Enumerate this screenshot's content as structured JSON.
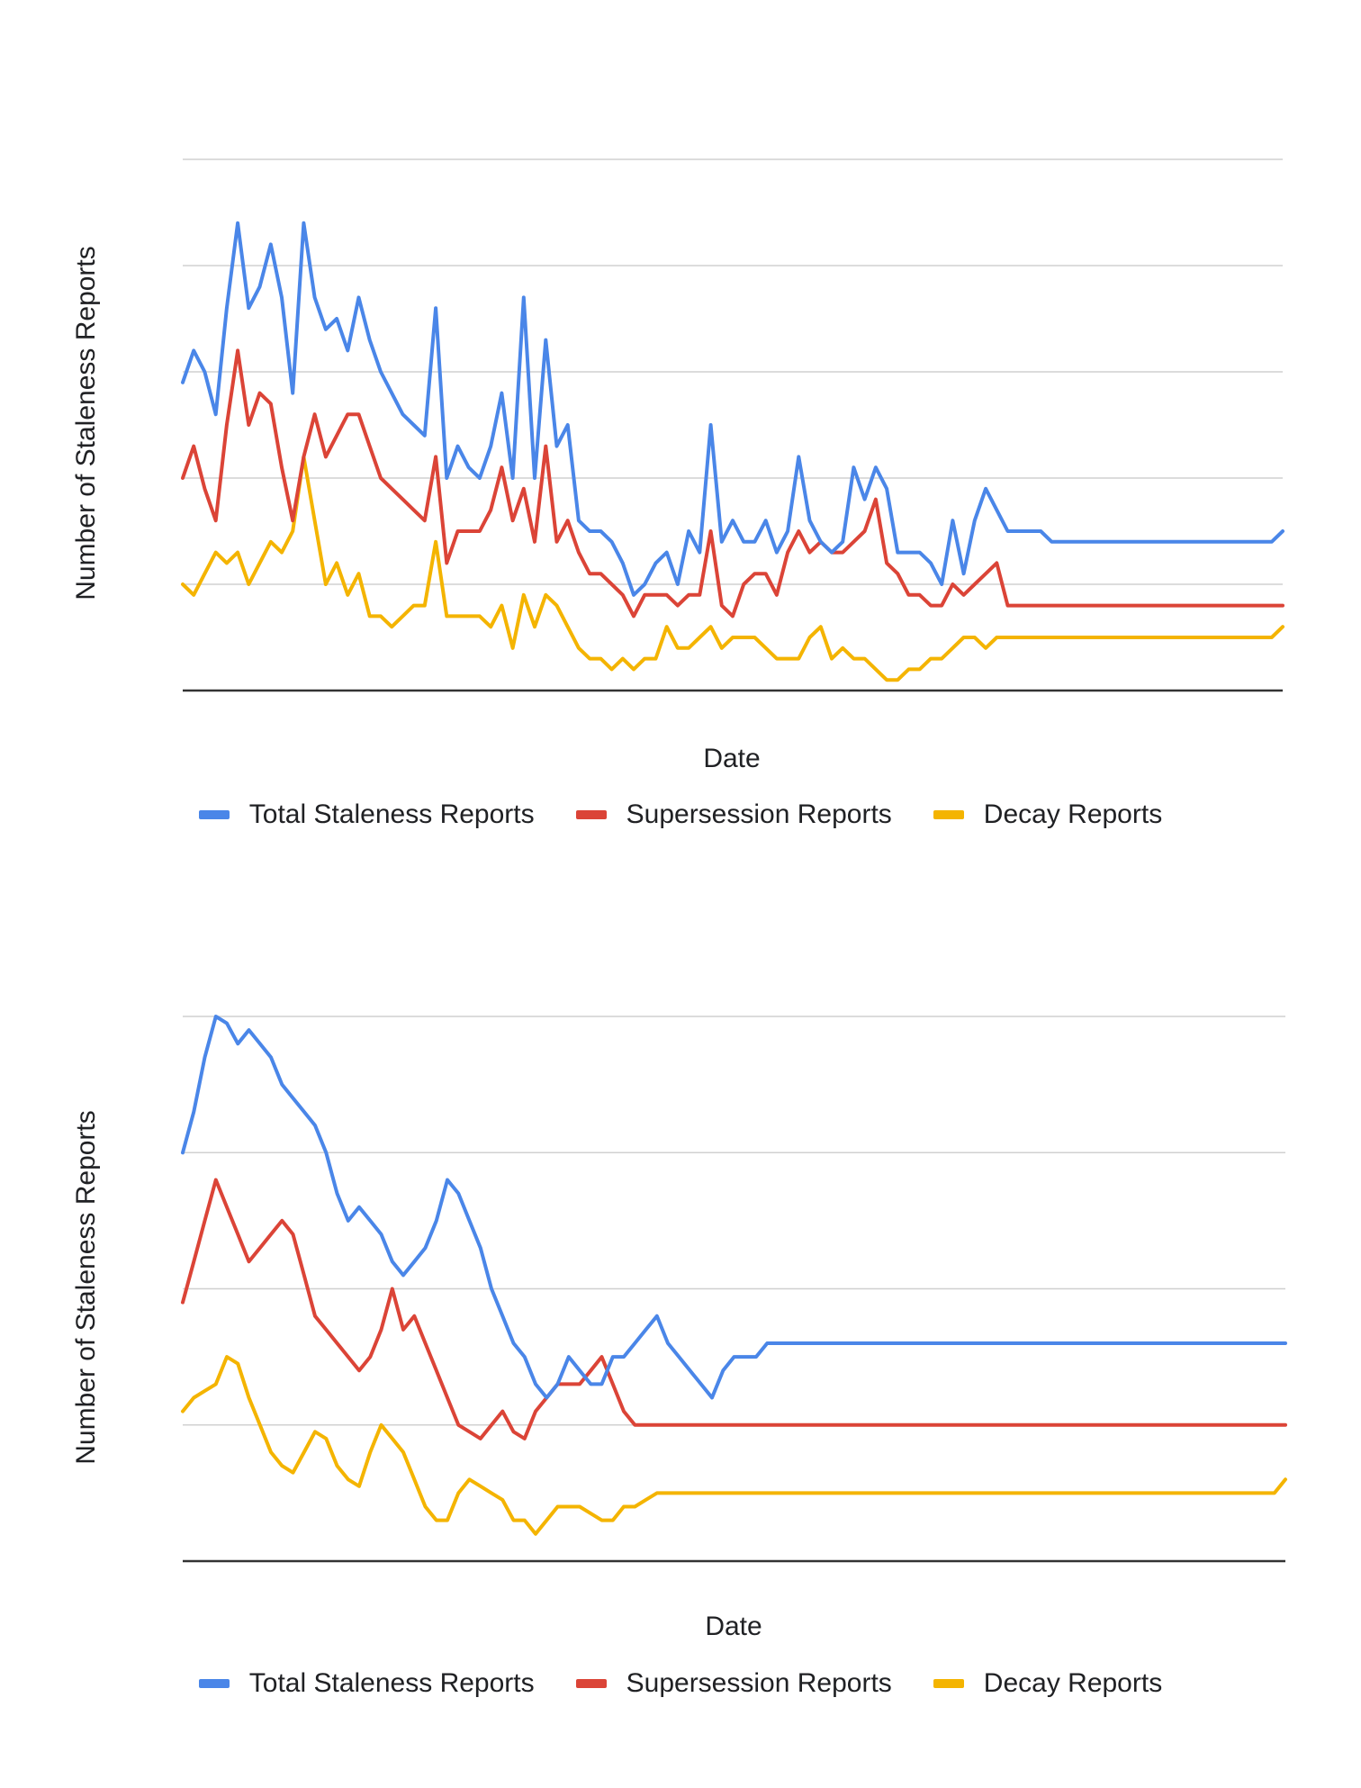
{
  "colors": {
    "total": "#4a86e8",
    "supersession": "#db4437",
    "decay": "#f4b400",
    "grid": "#d0d0d0",
    "axis": "#333333"
  },
  "charts": [
    {
      "ylabel": "Number of Staleness Reports",
      "xlabel": "Date",
      "legend": [
        "Total Staleness Reports",
        "Supersession Reports",
        "Decay Reports"
      ]
    },
    {
      "ylabel": "Number of Staleness Reports",
      "xlabel": "Date",
      "legend": [
        "Total Staleness Reports",
        "Supersession Reports",
        "Decay Reports"
      ]
    }
  ],
  "chart_data": [
    {
      "type": "line",
      "title": "",
      "xlabel": "Date",
      "ylabel": "Number of Staleness Reports",
      "x_tick_labels": [],
      "y_tick_labels": [],
      "ylim": [
        0,
        5
      ],
      "grid": true,
      "legend_position": "bottom",
      "x": [
        0,
        1,
        2,
        3,
        4,
        5,
        6,
        7,
        8,
        9,
        10,
        11,
        12,
        13,
        14,
        15,
        16,
        17,
        18,
        19,
        20,
        21,
        22,
        23,
        24,
        25,
        26,
        27,
        28,
        29,
        30,
        31,
        32,
        33,
        34,
        35,
        36,
        37,
        38,
        39,
        40,
        41,
        42,
        43,
        44,
        45,
        46,
        47,
        48,
        49,
        50,
        51,
        52,
        53,
        54,
        55,
        56,
        57,
        58,
        59,
        60,
        61,
        62,
        63,
        64,
        65,
        66,
        67,
        68,
        69,
        70,
        71,
        72,
        73,
        74,
        75,
        76,
        77,
        78,
        79,
        80,
        81,
        82,
        83,
        84,
        85,
        86,
        87,
        88,
        89,
        90,
        91,
        92,
        93,
        94,
        95,
        96,
        97,
        98,
        99,
        100
      ],
      "series": [
        {
          "name": "Total Staleness Reports",
          "values": [
            2.9,
            3.2,
            3.0,
            2.6,
            3.6,
            4.4,
            3.6,
            3.8,
            4.2,
            3.7,
            2.8,
            4.4,
            3.7,
            3.4,
            3.5,
            3.2,
            3.7,
            3.3,
            3.0,
            2.8,
            2.6,
            2.5,
            2.4,
            3.6,
            2.0,
            2.3,
            2.1,
            2.0,
            2.3,
            2.8,
            2.0,
            3.7,
            2.0,
            3.3,
            2.3,
            2.5,
            1.6,
            1.5,
            1.5,
            1.4,
            1.2,
            0.9,
            1.0,
            1.2,
            1.3,
            1.0,
            1.5,
            1.3,
            2.5,
            1.4,
            1.6,
            1.4,
            1.4,
            1.6,
            1.3,
            1.5,
            2.2,
            1.6,
            1.4,
            1.3,
            1.4,
            2.1,
            1.8,
            2.1,
            1.9,
            1.3,
            1.3,
            1.3,
            1.2,
            1.0,
            1.6,
            1.1,
            1.6,
            1.9,
            1.7,
            1.5,
            1.5,
            1.5,
            1.5,
            1.4,
            1.4,
            1.4,
            1.4,
            1.4,
            1.4,
            1.4,
            1.4,
            1.4,
            1.4,
            1.4,
            1.4,
            1.4,
            1.4,
            1.4,
            1.4,
            1.4,
            1.4,
            1.4,
            1.4,
            1.4,
            1.5
          ]
        },
        {
          "name": "Supersession Reports",
          "values": [
            2.0,
            2.3,
            1.9,
            1.6,
            2.5,
            3.2,
            2.5,
            2.8,
            2.7,
            2.1,
            1.6,
            2.2,
            2.6,
            2.2,
            2.4,
            2.6,
            2.6,
            2.3,
            2.0,
            1.9,
            1.8,
            1.7,
            1.6,
            2.2,
            1.2,
            1.5,
            1.5,
            1.5,
            1.7,
            2.1,
            1.6,
            1.9,
            1.4,
            2.3,
            1.4,
            1.6,
            1.3,
            1.1,
            1.1,
            1.0,
            0.9,
            0.7,
            0.9,
            0.9,
            0.9,
            0.8,
            0.9,
            0.9,
            1.5,
            0.8,
            0.7,
            1.0,
            1.1,
            1.1,
            0.9,
            1.3,
            1.5,
            1.3,
            1.4,
            1.3,
            1.3,
            1.4,
            1.5,
            1.8,
            1.2,
            1.1,
            0.9,
            0.9,
            0.8,
            0.8,
            1.0,
            0.9,
            1.0,
            1.1,
            1.2,
            0.8,
            0.8,
            0.8,
            0.8,
            0.8,
            0.8,
            0.8,
            0.8,
            0.8,
            0.8,
            0.8,
            0.8,
            0.8,
            0.8,
            0.8,
            0.8,
            0.8,
            0.8,
            0.8,
            0.8,
            0.8,
            0.8,
            0.8,
            0.8,
            0.8,
            0.8
          ]
        },
        {
          "name": "Decay Reports",
          "values": [
            1.0,
            0.9,
            1.1,
            1.3,
            1.2,
            1.3,
            1.0,
            1.2,
            1.4,
            1.3,
            1.5,
            2.2,
            1.6,
            1.0,
            1.2,
            0.9,
            1.1,
            0.7,
            0.7,
            0.6,
            0.7,
            0.8,
            0.8,
            1.4,
            0.7,
            0.7,
            0.7,
            0.7,
            0.6,
            0.8,
            0.4,
            0.9,
            0.6,
            0.9,
            0.8,
            0.6,
            0.4,
            0.3,
            0.3,
            0.2,
            0.3,
            0.2,
            0.3,
            0.3,
            0.6,
            0.4,
            0.4,
            0.5,
            0.6,
            0.4,
            0.5,
            0.5,
            0.5,
            0.4,
            0.3,
            0.3,
            0.3,
            0.5,
            0.6,
            0.3,
            0.4,
            0.3,
            0.3,
            0.2,
            0.1,
            0.1,
            0.2,
            0.2,
            0.3,
            0.3,
            0.4,
            0.5,
            0.5,
            0.4,
            0.5,
            0.5,
            0.5,
            0.5,
            0.5,
            0.5,
            0.5,
            0.5,
            0.5,
            0.5,
            0.5,
            0.5,
            0.5,
            0.5,
            0.5,
            0.5,
            0.5,
            0.5,
            0.5,
            0.5,
            0.5,
            0.5,
            0.5,
            0.5,
            0.5,
            0.5,
            0.6
          ]
        }
      ]
    },
    {
      "type": "line",
      "title": "",
      "xlabel": "Date",
      "ylabel": "Number of Staleness Reports",
      "x_tick_labels": [],
      "y_tick_labels": [],
      "ylim": [
        0,
        4
      ],
      "grid": true,
      "legend_position": "bottom",
      "x": [
        0,
        1,
        2,
        3,
        4,
        5,
        6,
        7,
        8,
        9,
        10,
        11,
        12,
        13,
        14,
        15,
        16,
        17,
        18,
        19,
        20,
        21,
        22,
        23,
        24,
        25,
        26,
        27,
        28,
        29,
        30,
        31,
        32,
        33,
        34,
        35,
        36,
        37,
        38,
        39,
        40,
        41,
        42,
        43,
        44,
        45,
        46,
        47,
        48,
        49,
        50,
        51,
        52,
        53,
        54,
        55,
        56,
        57,
        58,
        59,
        60,
        61,
        62,
        63,
        64,
        65,
        66,
        67,
        68,
        69,
        70,
        71,
        72,
        73,
        74,
        75,
        76,
        77,
        78,
        79,
        80,
        81,
        82,
        83,
        84,
        85,
        86,
        87,
        88,
        89,
        90,
        91,
        92,
        93,
        94,
        95,
        96,
        97,
        98,
        99,
        100
      ],
      "series": [
        {
          "name": "Total Staleness Reports",
          "values": [
            3.0,
            3.3,
            3.7,
            4.0,
            3.95,
            3.8,
            3.9,
            3.8,
            3.7,
            3.5,
            3.4,
            3.3,
            3.2,
            3.0,
            2.7,
            2.5,
            2.6,
            2.5,
            2.4,
            2.2,
            2.1,
            2.2,
            2.3,
            2.5,
            2.8,
            2.7,
            2.5,
            2.3,
            2.0,
            1.8,
            1.6,
            1.5,
            1.3,
            1.2,
            1.3,
            1.5,
            1.4,
            1.3,
            1.3,
            1.5,
            1.5,
            1.6,
            1.7,
            1.8,
            1.6,
            1.5,
            1.4,
            1.3,
            1.2,
            1.4,
            1.5,
            1.5,
            1.5,
            1.6,
            1.6,
            1.6,
            1.6,
            1.6,
            1.6,
            1.6,
            1.6,
            1.6,
            1.6,
            1.6,
            1.6,
            1.6,
            1.6,
            1.6,
            1.6,
            1.6,
            1.6,
            1.6,
            1.6,
            1.6,
            1.6,
            1.6,
            1.6,
            1.6,
            1.6,
            1.6,
            1.6,
            1.6,
            1.6,
            1.6,
            1.6,
            1.6,
            1.6,
            1.6,
            1.6,
            1.6,
            1.6,
            1.6,
            1.6,
            1.6,
            1.6,
            1.6,
            1.6,
            1.6,
            1.6,
            1.6,
            1.6
          ]
        },
        {
          "name": "Supersession Reports",
          "values": [
            1.9,
            2.2,
            2.5,
            2.8,
            2.6,
            2.4,
            2.2,
            2.3,
            2.4,
            2.5,
            2.4,
            2.1,
            1.8,
            1.7,
            1.6,
            1.5,
            1.4,
            1.5,
            1.7,
            2.0,
            1.7,
            1.8,
            1.6,
            1.4,
            1.2,
            1.0,
            0.95,
            0.9,
            1.0,
            1.1,
            0.95,
            0.9,
            1.1,
            1.2,
            1.3,
            1.3,
            1.3,
            1.4,
            1.5,
            1.3,
            1.1,
            1.0,
            1.0,
            1.0,
            1.0,
            1.0,
            1.0,
            1.0,
            1.0,
            1.0,
            1.0,
            1.0,
            1.0,
            1.0,
            1.0,
            1.0,
            1.0,
            1.0,
            1.0,
            1.0,
            1.0,
            1.0,
            1.0,
            1.0,
            1.0,
            1.0,
            1.0,
            1.0,
            1.0,
            1.0,
            1.0,
            1.0,
            1.0,
            1.0,
            1.0,
            1.0,
            1.0,
            1.0,
            1.0,
            1.0,
            1.0,
            1.0,
            1.0,
            1.0,
            1.0,
            1.0,
            1.0,
            1.0,
            1.0,
            1.0,
            1.0,
            1.0,
            1.0,
            1.0,
            1.0,
            1.0,
            1.0,
            1.0,
            1.0,
            1.0,
            1.0
          ]
        },
        {
          "name": "Decay Reports",
          "values": [
            1.1,
            1.2,
            1.25,
            1.3,
            1.5,
            1.45,
            1.2,
            1.0,
            0.8,
            0.7,
            0.65,
            0.8,
            0.95,
            0.9,
            0.7,
            0.6,
            0.55,
            0.8,
            1.0,
            0.9,
            0.8,
            0.6,
            0.4,
            0.3,
            0.3,
            0.5,
            0.6,
            0.55,
            0.5,
            0.45,
            0.3,
            0.3,
            0.2,
            0.3,
            0.4,
            0.4,
            0.4,
            0.35,
            0.3,
            0.3,
            0.4,
            0.4,
            0.45,
            0.5,
            0.5,
            0.5,
            0.5,
            0.5,
            0.5,
            0.5,
            0.5,
            0.5,
            0.5,
            0.5,
            0.5,
            0.5,
            0.5,
            0.5,
            0.5,
            0.5,
            0.5,
            0.5,
            0.5,
            0.5,
            0.5,
            0.5,
            0.5,
            0.5,
            0.5,
            0.5,
            0.5,
            0.5,
            0.5,
            0.5,
            0.5,
            0.5,
            0.5,
            0.5,
            0.5,
            0.5,
            0.5,
            0.5,
            0.5,
            0.5,
            0.5,
            0.5,
            0.5,
            0.5,
            0.5,
            0.5,
            0.5,
            0.5,
            0.5,
            0.5,
            0.5,
            0.5,
            0.5,
            0.5,
            0.5,
            0.5,
            0.6
          ]
        }
      ]
    }
  ]
}
